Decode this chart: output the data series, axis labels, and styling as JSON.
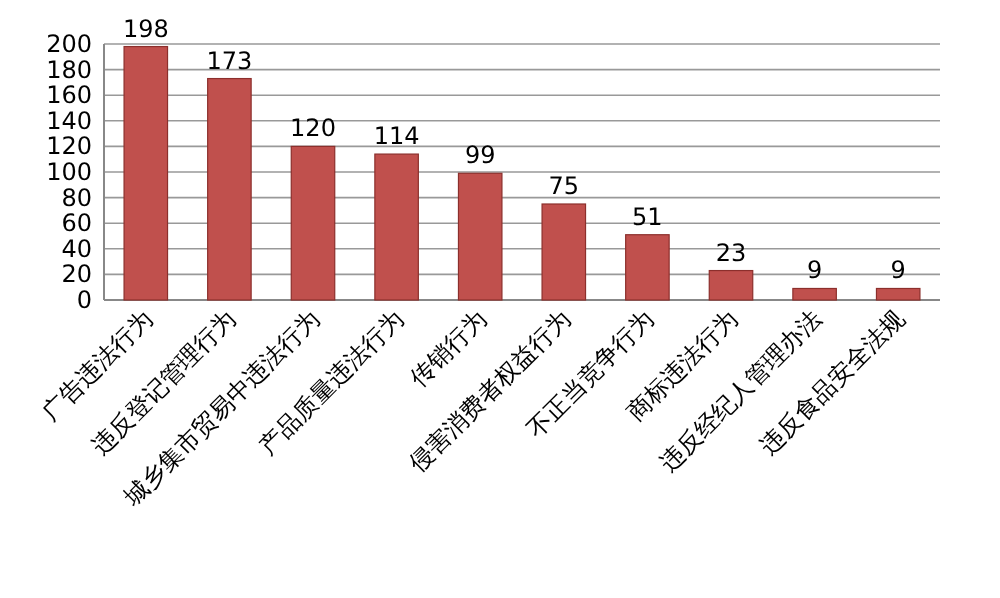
{
  "chart_data": {
    "type": "bar",
    "categories": [
      "广告违法行为",
      "违反登记管理行为",
      "城乡集市贸易中违法行为",
      "产品质量违法行为",
      "传销行为",
      "侵害消费者权益行为",
      "不正当竞争行为",
      "商标违法行为",
      "违反经纪人管理办法",
      "违反食品安全法规"
    ],
    "values": [
      198,
      173,
      120,
      114,
      99,
      75,
      51,
      23,
      9,
      9
    ],
    "color": "#c0504d",
    "ylim": [
      0,
      200
    ],
    "yticks": [
      0,
      20,
      40,
      60,
      80,
      100,
      120,
      140,
      160,
      180,
      200
    ],
    "grid": "y",
    "data_labels": true
  }
}
